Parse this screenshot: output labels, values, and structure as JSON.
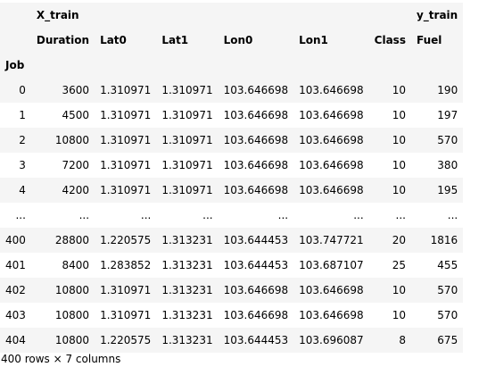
{
  "table": {
    "groups": {
      "x_label": "X_train",
      "y_label": "y_train"
    },
    "columns": [
      "Duration",
      "Lat0",
      "Lat1",
      "Lon0",
      "Lon1",
      "Class",
      "Fuel"
    ],
    "index_name": "Job",
    "rows": [
      {
        "idx": "0",
        "cells": [
          "3600",
          "1.310971",
          "1.310971",
          "103.646698",
          "103.646698",
          "10",
          "190"
        ]
      },
      {
        "idx": "1",
        "cells": [
          "4500",
          "1.310971",
          "1.310971",
          "103.646698",
          "103.646698",
          "10",
          "197"
        ]
      },
      {
        "idx": "2",
        "cells": [
          "10800",
          "1.310971",
          "1.310971",
          "103.646698",
          "103.646698",
          "10",
          "570"
        ]
      },
      {
        "idx": "3",
        "cells": [
          "7200",
          "1.310971",
          "1.310971",
          "103.646698",
          "103.646698",
          "10",
          "380"
        ]
      },
      {
        "idx": "4",
        "cells": [
          "4200",
          "1.310971",
          "1.310971",
          "103.646698",
          "103.646698",
          "10",
          "195"
        ]
      },
      {
        "idx": "...",
        "cells": [
          "...",
          "...",
          "...",
          "...",
          "...",
          "...",
          "..."
        ]
      },
      {
        "idx": "400",
        "cells": [
          "28800",
          "1.220575",
          "1.313231",
          "103.644453",
          "103.747721",
          "20",
          "1816"
        ]
      },
      {
        "idx": "401",
        "cells": [
          "8400",
          "1.283852",
          "1.313231",
          "103.644453",
          "103.687107",
          "25",
          "455"
        ]
      },
      {
        "idx": "402",
        "cells": [
          "10800",
          "1.310971",
          "1.313231",
          "103.646698",
          "103.646698",
          "10",
          "570"
        ]
      },
      {
        "idx": "403",
        "cells": [
          "10800",
          "1.310971",
          "1.313231",
          "103.646698",
          "103.646698",
          "10",
          "570"
        ]
      },
      {
        "idx": "404",
        "cells": [
          "10800",
          "1.220575",
          "1.313231",
          "103.644453",
          "103.696087",
          "8",
          "675"
        ]
      }
    ]
  },
  "footer": {
    "shape_text": "400 rows × 7 columns"
  }
}
